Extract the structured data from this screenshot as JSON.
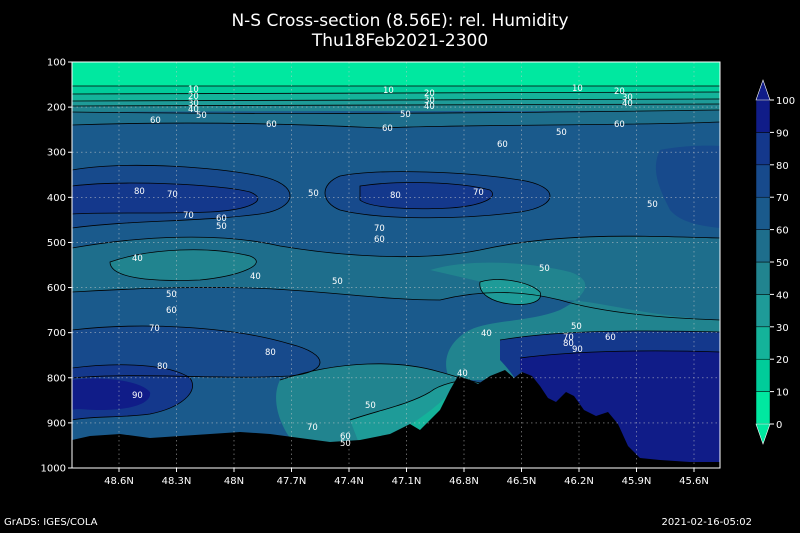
{
  "chart_data": {
    "type": "heatmap",
    "title": "N-S Cross-section (8.56E): rel. Humidity",
    "subtitle": "Thu18Feb2021-2300",
    "y_ticks": [
      "100",
      "200",
      "300",
      "400",
      "500",
      "600",
      "700",
      "800",
      "900",
      "1000"
    ],
    "x_ticks": [
      "48.6N",
      "48.3N",
      "48N",
      "47.7N",
      "47.4N",
      "47.1N",
      "46.8N",
      "46.5N",
      "46.2N",
      "45.9N",
      "45.6N"
    ],
    "colorbar_ticks": [
      "0",
      "10",
      "20",
      "30",
      "40",
      "50",
      "60",
      "70",
      "80",
      "90",
      "100"
    ],
    "colorbar_colors": [
      "#00e8a0",
      "#00cc9a",
      "#14b39a",
      "#1e9b98",
      "#21848f",
      "#1e6e8c",
      "#1a5a8c",
      "#174a8c",
      "#14388c",
      "#101c88"
    ],
    "ylim": [
      100,
      1000
    ],
    "y_scale": "pressure (inverted)",
    "grid": true,
    "contour_labels": [
      "10",
      "20",
      "30",
      "40",
      "50",
      "60",
      "70",
      "80",
      "90"
    ]
  },
  "footer": {
    "left": "GrADS: IGES/COLA",
    "right": "2021-02-16-05:02"
  }
}
